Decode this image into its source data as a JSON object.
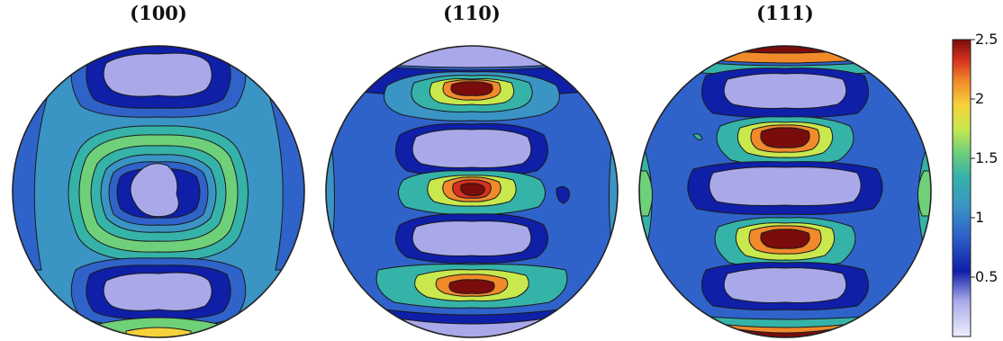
{
  "figure": {
    "panels": [
      {
        "title": "(100)",
        "kind": "pole-figure"
      },
      {
        "title": "(110)",
        "kind": "pole-figure"
      },
      {
        "title": "(111)",
        "kind": "pole-figure"
      }
    ],
    "colorbar": {
      "ticks": [
        "2.5",
        "2",
        "1.5",
        "1",
        "0.5"
      ],
      "tick_values": [
        2.5,
        2.0,
        1.5,
        1.0,
        0.5
      ],
      "range": [
        0.0,
        2.5
      ],
      "colors": [
        "#e6e6fb",
        "#a9a9ea",
        "#0f1fa8",
        "#2f63c9",
        "#3a94c4",
        "#36b3a8",
        "#6fd07a",
        "#c8e84e",
        "#f6d23a",
        "#f08a2b",
        "#d6321f",
        "#7a0c0c"
      ]
    }
  }
}
